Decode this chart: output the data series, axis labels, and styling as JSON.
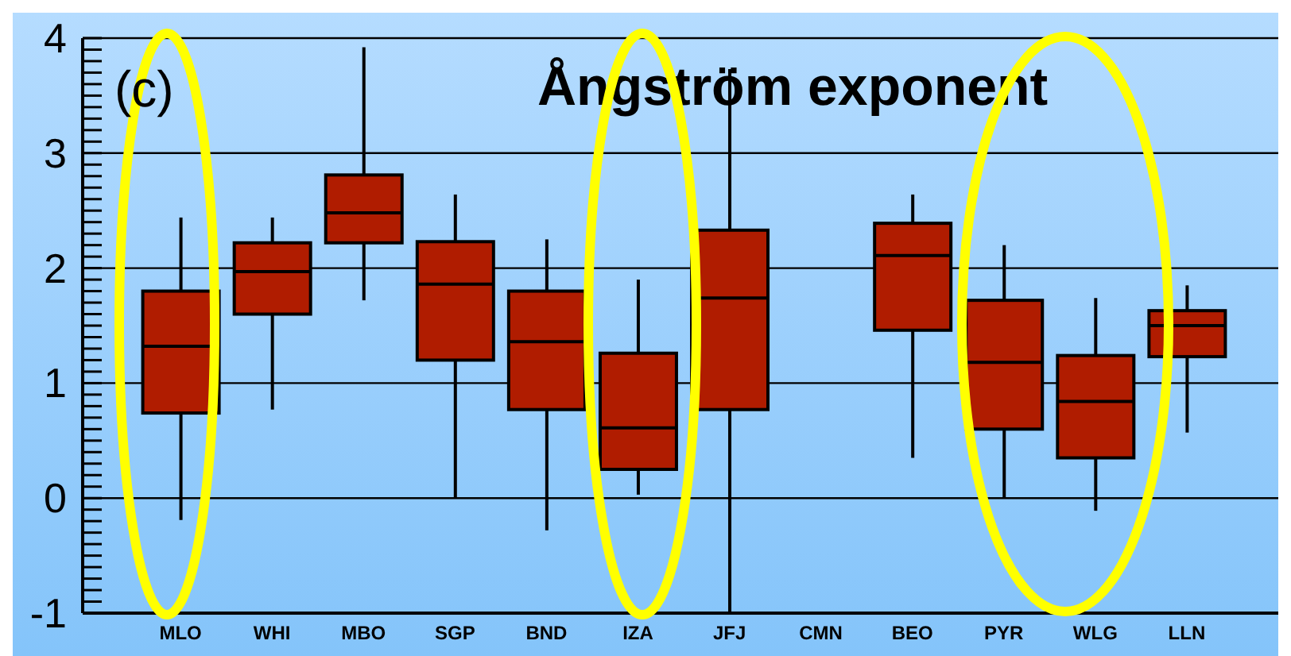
{
  "chart_data": {
    "type": "box",
    "title": "Ångström exponent",
    "annotations": [
      "(c)"
    ],
    "categories": [
      "MLO",
      "WHI",
      "MBO",
      "SGP",
      "BND",
      "IZA",
      "JFJ",
      "CMN",
      "BEO",
      "PYR",
      "WLG",
      "LLN"
    ],
    "color": "#b01c00",
    "boxes": [
      {
        "low": -0.19,
        "q1": 0.74,
        "median": 1.32,
        "q3": 1.8,
        "high": 2.44
      },
      {
        "low": 0.77,
        "q1": 1.6,
        "median": 1.97,
        "q3": 2.22,
        "high": 2.44
      },
      {
        "low": 1.72,
        "q1": 2.22,
        "median": 2.48,
        "q3": 2.81,
        "high": 3.92
      },
      {
        "low": 0,
        "q1": 1.2,
        "median": 1.86,
        "q3": 2.23,
        "high": 2.64
      },
      {
        "low": -0.28,
        "q1": 0.77,
        "median": 1.36,
        "q3": 1.8,
        "high": 2.25
      },
      {
        "low": 0.03,
        "q1": 0.25,
        "median": 0.61,
        "q3": 1.26,
        "high": 1.9
      },
      {
        "low": -1,
        "q1": 0.77,
        "median": 1.74,
        "q3": 2.33,
        "high": 3.73
      },
      null,
      {
        "low": 0.35,
        "q1": 1.46,
        "median": 2.11,
        "q3": 2.39,
        "high": 2.64
      },
      {
        "low": 0,
        "q1": 0.6,
        "median": 1.18,
        "q3": 1.72,
        "high": 2.2
      },
      {
        "low": -0.11,
        "q1": 0.35,
        "median": 0.84,
        "q3": 1.24,
        "high": 1.74
      },
      {
        "low": 0.57,
        "q1": 1.23,
        "median": 1.5,
        "q3": 1.63,
        "high": 1.85
      }
    ],
    "ylim": [
      -1,
      4
    ],
    "yticks": [
      -1,
      {
        "value": -0.9,
        "label": null
      },
      {
        "value": -0.8,
        "label": null
      },
      {
        "value": -0.7,
        "label": null
      },
      {
        "value": -0.6,
        "label": null
      },
      {
        "value": -0.5,
        "label": null
      },
      {
        "value": -0.4,
        "label": null
      },
      {
        "value": -0.3,
        "label": null
      },
      {
        "value": -0.2,
        "label": null
      },
      {
        "value": -0.1,
        "label": null
      },
      0,
      {
        "value": 0.1,
        "label": null
      },
      {
        "value": 0.2,
        "label": null
      },
      {
        "value": 0.3,
        "label": null
      },
      {
        "value": 0.4,
        "label": null
      },
      {
        "value": 0.5,
        "label": null
      },
      {
        "value": 0.6,
        "label": null
      },
      {
        "value": 0.7,
        "label": null
      },
      {
        "value": 0.8,
        "label": null
      },
      {
        "value": 0.9,
        "label": null
      },
      1,
      {
        "value": 1.1,
        "label": null
      },
      {
        "value": 1.2,
        "label": null
      },
      {
        "value": 1.3,
        "label": null
      },
      {
        "value": 1.4,
        "label": null
      },
      {
        "value": 1.5,
        "label": null
      },
      {
        "value": 1.6,
        "label": null
      },
      {
        "value": 1.7,
        "label": null
      },
      {
        "value": 1.8,
        "label": null
      },
      {
        "value": 1.9,
        "label": null
      },
      2,
      {
        "value": 2.1,
        "label": null
      },
      {
        "value": 2.2,
        "label": null
      },
      {
        "value": 2.3,
        "label": null
      },
      {
        "value": 2.4,
        "label": null
      },
      {
        "value": 2.5,
        "label": null
      },
      {
        "value": 2.6,
        "label": null
      },
      {
        "value": 2.7,
        "label": null
      },
      {
        "value": 2.8,
        "label": null
      },
      {
        "value": 2.9,
        "label": null
      },
      3,
      {
        "value": 3.1,
        "label": null
      },
      {
        "value": 3.2,
        "label": null
      },
      {
        "value": 3.3,
        "label": null
      },
      {
        "value": 3.4,
        "label": null
      },
      {
        "value": 3.5,
        "label": null
      },
      {
        "value": 3.6,
        "label": null
      },
      {
        "value": 3.7,
        "label": null
      },
      {
        "value": 3.8,
        "label": null
      },
      {
        "value": 3.9,
        "label": null
      },
      4
    ],
    "grid": "y"
  }
}
